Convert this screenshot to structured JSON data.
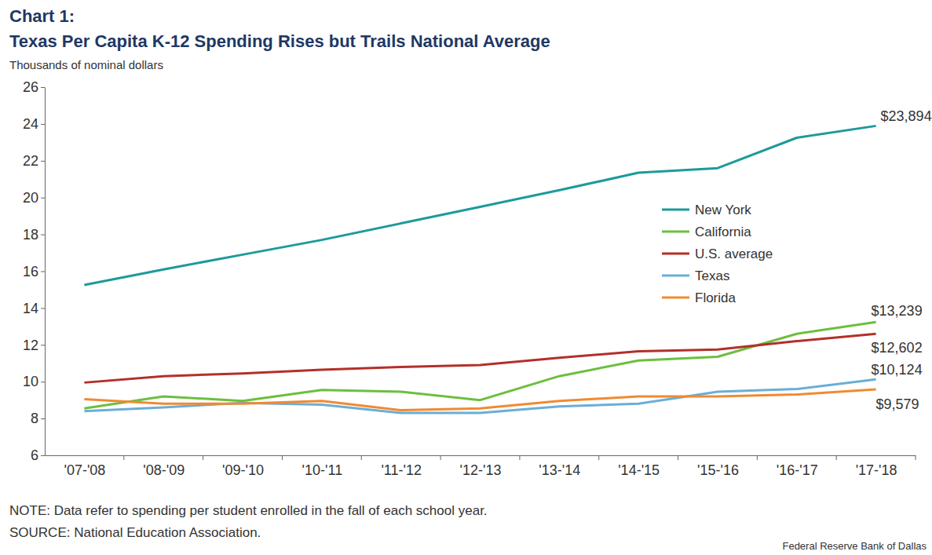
{
  "chart_data": {
    "type": "line",
    "title": [
      "Chart 1:",
      "Texas Per Capita K-12 Spending Rises but Trails National Average"
    ],
    "y_label": "Thousands of nominal dollars",
    "categories": [
      "'07-'08",
      "'08-'09",
      "'09-'10",
      "'10-'11",
      "'11-'12",
      "'12-'13",
      "'13-'14",
      "'14-'15",
      "'15-'16",
      "'16-'17",
      "'17-'18"
    ],
    "series": [
      {
        "name": "New York",
        "color": "#1d9a9b",
        "values": [
          15.25,
          16.1,
          16.9,
          17.7,
          18.6,
          19.5,
          20.4,
          21.35,
          21.6,
          23.25,
          23.894
        ],
        "value_labels": [
          null,
          null,
          null,
          null,
          null,
          null,
          null,
          null,
          null,
          null,
          "$23,894"
        ]
      },
      {
        "name": "California",
        "color": "#6cbf3e",
        "values": [
          8.55,
          9.2,
          8.95,
          9.55,
          9.45,
          9.0,
          10.3,
          11.15,
          11.35,
          12.6,
          13.239
        ],
        "value_labels": [
          null,
          null,
          null,
          null,
          null,
          null,
          null,
          null,
          null,
          null,
          "$13,239"
        ]
      },
      {
        "name": "U.S. average",
        "color": "#b3302a",
        "values": [
          9.95,
          10.3,
          10.45,
          10.65,
          10.8,
          10.9,
          11.3,
          11.65,
          11.75,
          12.2,
          12.602
        ],
        "value_labels": [
          null,
          null,
          null,
          null,
          null,
          null,
          null,
          null,
          null,
          null,
          "$12,602"
        ]
      },
      {
        "name": "Texas",
        "color": "#6aaed6",
        "values": [
          8.4,
          8.6,
          8.85,
          8.75,
          8.3,
          8.3,
          8.65,
          8.8,
          9.45,
          9.6,
          10.124
        ],
        "value_labels": [
          null,
          null,
          null,
          null,
          null,
          null,
          null,
          null,
          null,
          null,
          "$10,124"
        ]
      },
      {
        "name": "Florida",
        "color": "#f08a32",
        "values": [
          9.05,
          8.8,
          8.8,
          8.95,
          8.45,
          8.55,
          8.95,
          9.2,
          9.2,
          9.3,
          9.579
        ],
        "value_labels": [
          null,
          null,
          null,
          null,
          null,
          null,
          null,
          null,
          null,
          null,
          "$9,579"
        ]
      }
    ],
    "ylim": [
      6,
      26
    ],
    "yticks": [
      6,
      8,
      10,
      12,
      14,
      16,
      18,
      20,
      22,
      24,
      26
    ],
    "grid": false,
    "legend": "right",
    "data_labels": true,
    "annotations": [
      "NOTE: Data refer to spending per student enrolled in the fall of each school year.",
      "SOURCE: National Education Association.",
      "Federal Reserve Bank of Dallas"
    ]
  }
}
